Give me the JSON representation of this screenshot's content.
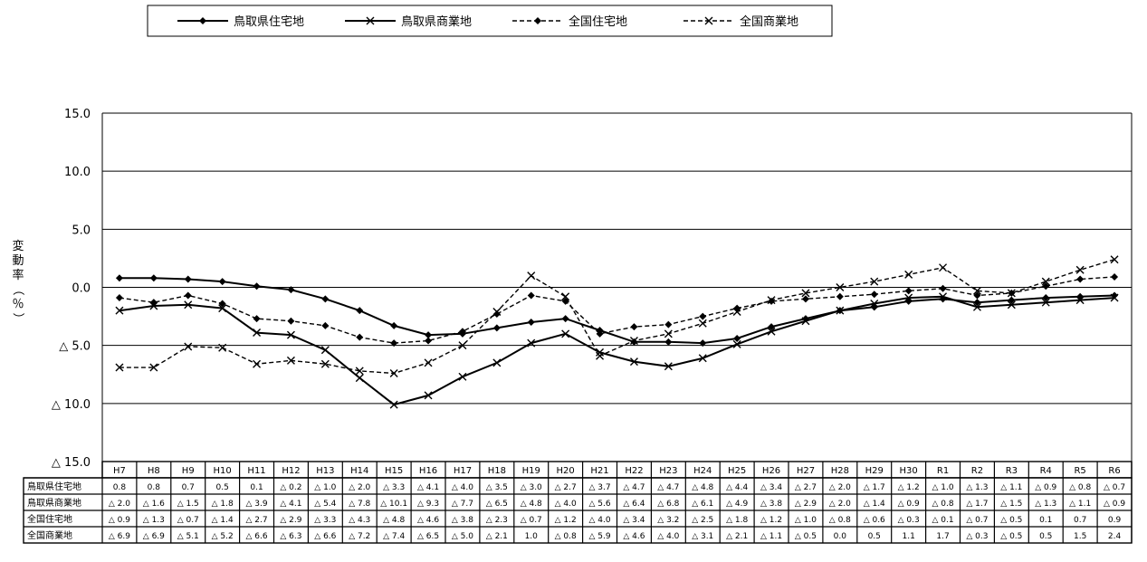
{
  "chart_data": {
    "type": "line",
    "ylabel": "変動率（％）",
    "ylim": [
      -15,
      15
    ],
    "y_ticks": [
      15,
      10,
      5,
      0,
      -5,
      -10,
      -15
    ],
    "y_tick_labels": [
      "15.0",
      "10.0",
      "5.0",
      "0.0",
      "△ 5.0",
      "△ 10.0",
      "△ 15.0"
    ],
    "grid": true,
    "legend_position": "top",
    "categories": [
      "H7",
      "H8",
      "H9",
      "H10",
      "H11",
      "H12",
      "H13",
      "H14",
      "H15",
      "H16",
      "H17",
      "H18",
      "H19",
      "H20",
      "H21",
      "H22",
      "H23",
      "H24",
      "H25",
      "H26",
      "H27",
      "H28",
      "H29",
      "H30",
      "R1",
      "R2",
      "R3",
      "R4",
      "R5",
      "R6"
    ],
    "series": [
      {
        "name": "鳥取県住宅地",
        "line_style": "solid",
        "marker": "diamond",
        "values": [
          0.8,
          0.8,
          0.7,
          0.5,
          0.1,
          -0.2,
          -1.0,
          -2.0,
          -3.3,
          -4.1,
          -4.0,
          -3.5,
          -3.0,
          -2.7,
          -3.7,
          -4.7,
          -4.7,
          -4.8,
          -4.4,
          -3.4,
          -2.7,
          -2.0,
          -1.7,
          -1.2,
          -1.0,
          -1.3,
          -1.1,
          -0.9,
          -0.8,
          -0.7
        ],
        "labels": [
          "0.8",
          "0.8",
          "0.7",
          "0.5",
          "0.1",
          "△ 0.2",
          "△ 1.0",
          "△ 2.0",
          "△ 3.3",
          "△ 4.1",
          "△ 4.0",
          "△ 3.5",
          "△ 3.0",
          "△ 2.7",
          "△ 3.7",
          "△ 4.7",
          "△ 4.7",
          "△ 4.8",
          "△ 4.4",
          "△ 3.4",
          "△ 2.7",
          "△ 2.0",
          "△ 1.7",
          "△ 1.2",
          "△ 1.0",
          "△ 1.3",
          "△ 1.1",
          "△ 0.9",
          "△ 0.8",
          "△ 0.7"
        ]
      },
      {
        "name": "鳥取県商業地",
        "line_style": "solid",
        "marker": "x",
        "values": [
          -2.0,
          -1.6,
          -1.5,
          -1.8,
          -3.9,
          -4.1,
          -5.4,
          -7.8,
          -10.1,
          -9.3,
          -7.7,
          -6.5,
          -4.8,
          -4.0,
          -5.6,
          -6.4,
          -6.8,
          -6.1,
          -4.9,
          -3.8,
          -2.9,
          -2.0,
          -1.4,
          -0.9,
          -0.8,
          -1.7,
          -1.5,
          -1.3,
          -1.1,
          -0.9
        ],
        "labels": [
          "△ 2.0",
          "△ 1.6",
          "△ 1.5",
          "△ 1.8",
          "△ 3.9",
          "△ 4.1",
          "△ 5.4",
          "△ 7.8",
          "△ 10.1",
          "△ 9.3",
          "△ 7.7",
          "△ 6.5",
          "△ 4.8",
          "△ 4.0",
          "△ 5.6",
          "△ 6.4",
          "△ 6.8",
          "△ 6.1",
          "△ 4.9",
          "△ 3.8",
          "△ 2.9",
          "△ 2.0",
          "△ 1.4",
          "△ 0.9",
          "△ 0.8",
          "△ 1.7",
          "△ 1.5",
          "△ 1.3",
          "△ 1.1",
          "△ 0.9"
        ]
      },
      {
        "name": "全国住宅地",
        "line_style": "dashed",
        "marker": "diamond",
        "values": [
          -0.9,
          -1.3,
          -0.7,
          -1.4,
          -2.7,
          -2.9,
          -3.3,
          -4.3,
          -4.8,
          -4.6,
          -3.8,
          -2.3,
          -0.7,
          -1.2,
          -4.0,
          -3.4,
          -3.2,
          -2.5,
          -1.8,
          -1.2,
          -1.0,
          -0.8,
          -0.6,
          -0.3,
          -0.1,
          -0.7,
          -0.5,
          0.1,
          0.7,
          0.9
        ],
        "labels": [
          "△ 0.9",
          "△ 1.3",
          "△ 0.7",
          "△ 1.4",
          "△ 2.7",
          "△ 2.9",
          "△ 3.3",
          "△ 4.3",
          "△ 4.8",
          "△ 4.6",
          "△ 3.8",
          "△ 2.3",
          "△ 0.7",
          "△ 1.2",
          "△ 4.0",
          "△ 3.4",
          "△ 3.2",
          "△ 2.5",
          "△ 1.8",
          "△ 1.2",
          "△ 1.0",
          "△ 0.8",
          "△ 0.6",
          "△ 0.3",
          "△ 0.1",
          "△ 0.7",
          "△ 0.5",
          "0.1",
          "0.7",
          "0.9"
        ]
      },
      {
        "name": "全国商業地",
        "line_style": "dashed",
        "marker": "x",
        "values": [
          -6.9,
          -6.9,
          -5.1,
          -5.2,
          -6.6,
          -6.3,
          -6.6,
          -7.2,
          -7.4,
          -6.5,
          -5.0,
          -2.1,
          1.0,
          -0.8,
          -5.9,
          -4.6,
          -4.0,
          -3.1,
          -2.1,
          -1.1,
          -0.5,
          0.0,
          0.5,
          1.1,
          1.7,
          -0.3,
          -0.5,
          0.5,
          1.5,
          2.4
        ],
        "labels": [
          "△ 6.9",
          "△ 6.9",
          "△ 5.1",
          "△ 5.2",
          "△ 6.6",
          "△ 6.3",
          "△ 6.6",
          "△ 7.2",
          "△ 7.4",
          "△ 6.5",
          "△ 5.0",
          "△ 2.1",
          "1.0",
          "△ 0.8",
          "△ 5.9",
          "△ 4.6",
          "△ 4.0",
          "△ 3.1",
          "△ 2.1",
          "△ 1.1",
          "△ 0.5",
          "0.0",
          "0.5",
          "1.1",
          "1.7",
          "△ 0.3",
          "△ 0.5",
          "0.5",
          "1.5",
          "2.4"
        ]
      }
    ]
  }
}
